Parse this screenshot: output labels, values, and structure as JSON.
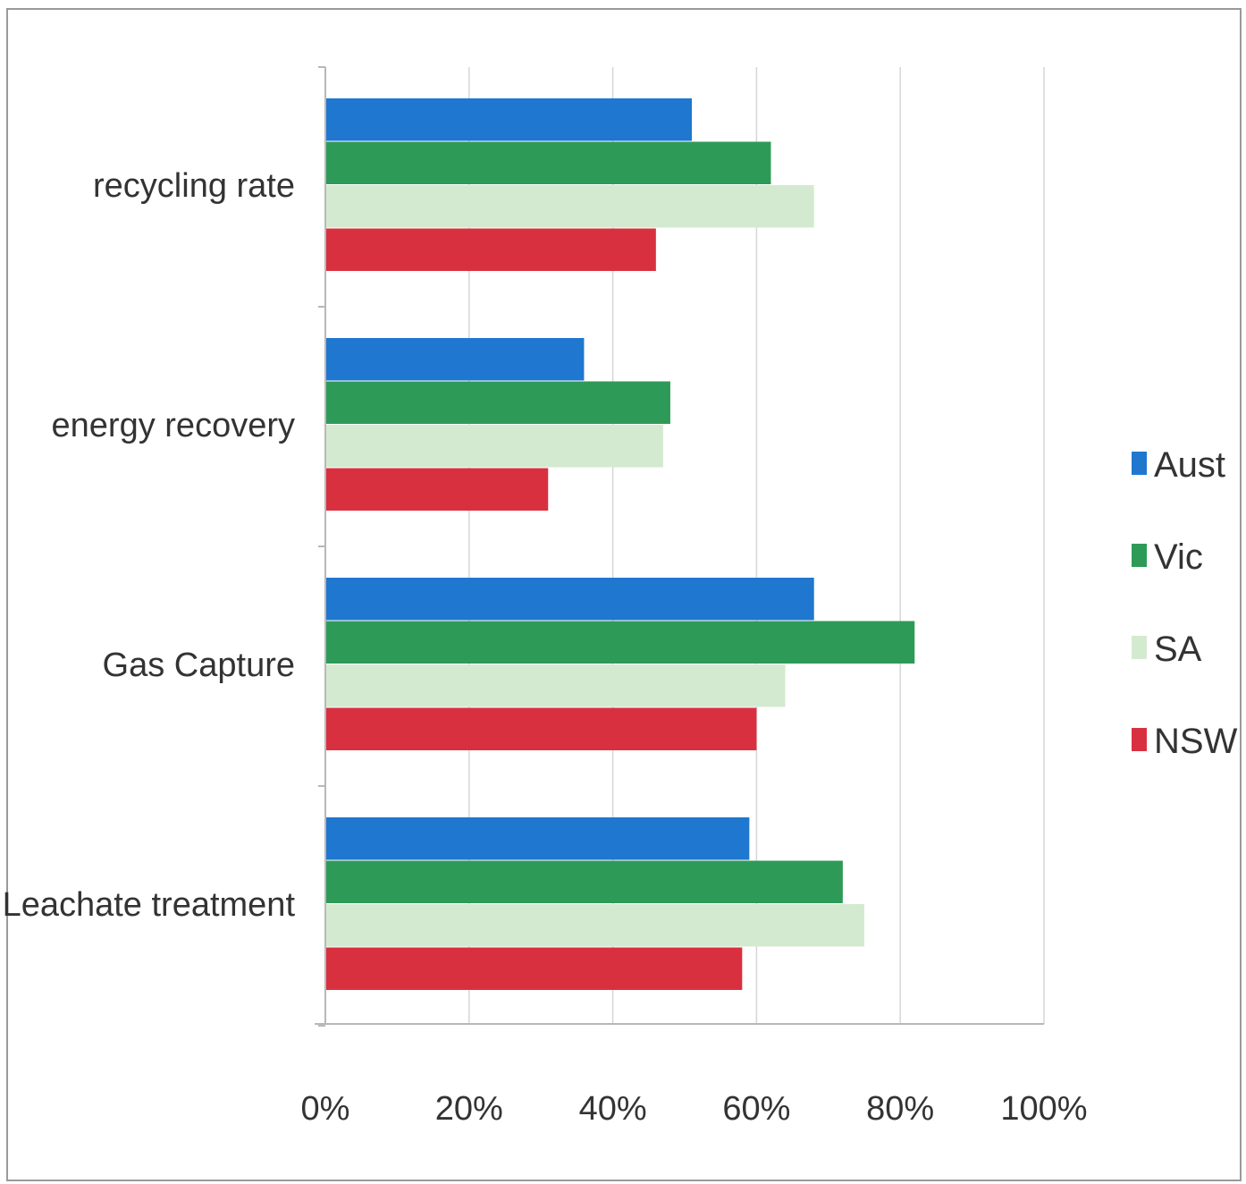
{
  "chart_data": {
    "type": "bar",
    "orientation": "horizontal",
    "categories": [
      "recycling rate",
      "energy recovery",
      "Gas Capture",
      "Leachate treatment"
    ],
    "series": [
      {
        "name": "Aust",
        "color": "#1f77d0",
        "values": [
          51,
          36,
          68,
          59
        ]
      },
      {
        "name": "Vic",
        "color": "#2e9a57",
        "values": [
          62,
          48,
          82,
          72
        ]
      },
      {
        "name": "SA",
        "color": "#d4ead0",
        "values": [
          68,
          47,
          64,
          75
        ]
      },
      {
        "name": "NSW",
        "color": "#d93040",
        "values": [
          46,
          31,
          60,
          58
        ]
      }
    ],
    "xticks": [
      "0%",
      "20%",
      "40%",
      "60%",
      "80%",
      "100%"
    ],
    "xlim": [
      0,
      100
    ],
    "grid": true,
    "legend_position": "right",
    "title": "",
    "xlabel": "",
    "ylabel": ""
  }
}
